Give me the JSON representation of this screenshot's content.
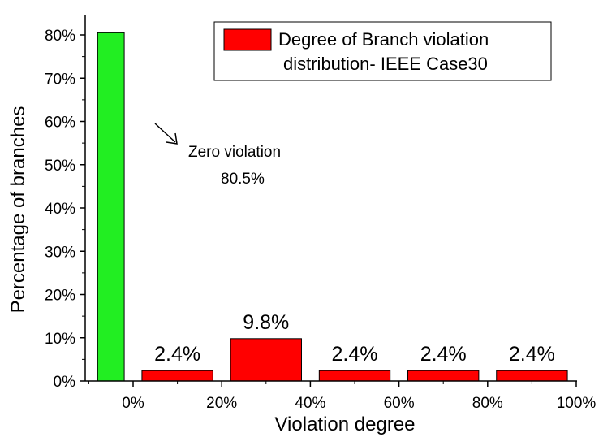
{
  "chart_data": {
    "type": "bar",
    "xlabel": "Violation degree",
    "ylabel": "Percentage of branches",
    "ylim": [
      0,
      85
    ],
    "xlim": [
      -10,
      100
    ],
    "y_ticks": [
      0,
      10,
      20,
      30,
      40,
      50,
      60,
      70,
      80
    ],
    "y_tick_labels": [
      "0%",
      "10%",
      "20%",
      "30%",
      "40%",
      "50%",
      "60%",
      "70%",
      "80%"
    ],
    "x_ticks": [
      0,
      20,
      40,
      60,
      80,
      100
    ],
    "x_tick_labels": [
      "0%",
      "20%",
      "40%",
      "60%",
      "80%",
      "100%"
    ],
    "bars": [
      {
        "x_start": -8,
        "x_end": -2,
        "value": 80.5,
        "color": "#22ee22",
        "label": ""
      },
      {
        "x_start": 2,
        "x_end": 18,
        "value": 2.4,
        "color": "#ff0000",
        "label": "2.4%"
      },
      {
        "x_start": 22,
        "x_end": 38,
        "value": 9.8,
        "color": "#ff0000",
        "label": "9.8%"
      },
      {
        "x_start": 42,
        "x_end": 58,
        "value": 2.4,
        "color": "#ff0000",
        "label": "2.4%"
      },
      {
        "x_start": 62,
        "x_end": 78,
        "value": 2.4,
        "color": "#ff0000",
        "label": "2.4%"
      },
      {
        "x_start": 82,
        "x_end": 98,
        "value": 2.4,
        "color": "#ff0000",
        "label": "2.4%"
      }
    ],
    "legend": {
      "position": "top-right",
      "lines": [
        "Degree of Branch violation",
        "distribution- IEEE Case30"
      ],
      "color": "#ff0000"
    },
    "annotation": {
      "lines": [
        "Zero violation",
        "80.5%"
      ],
      "arrow": "points toward green bar"
    }
  }
}
